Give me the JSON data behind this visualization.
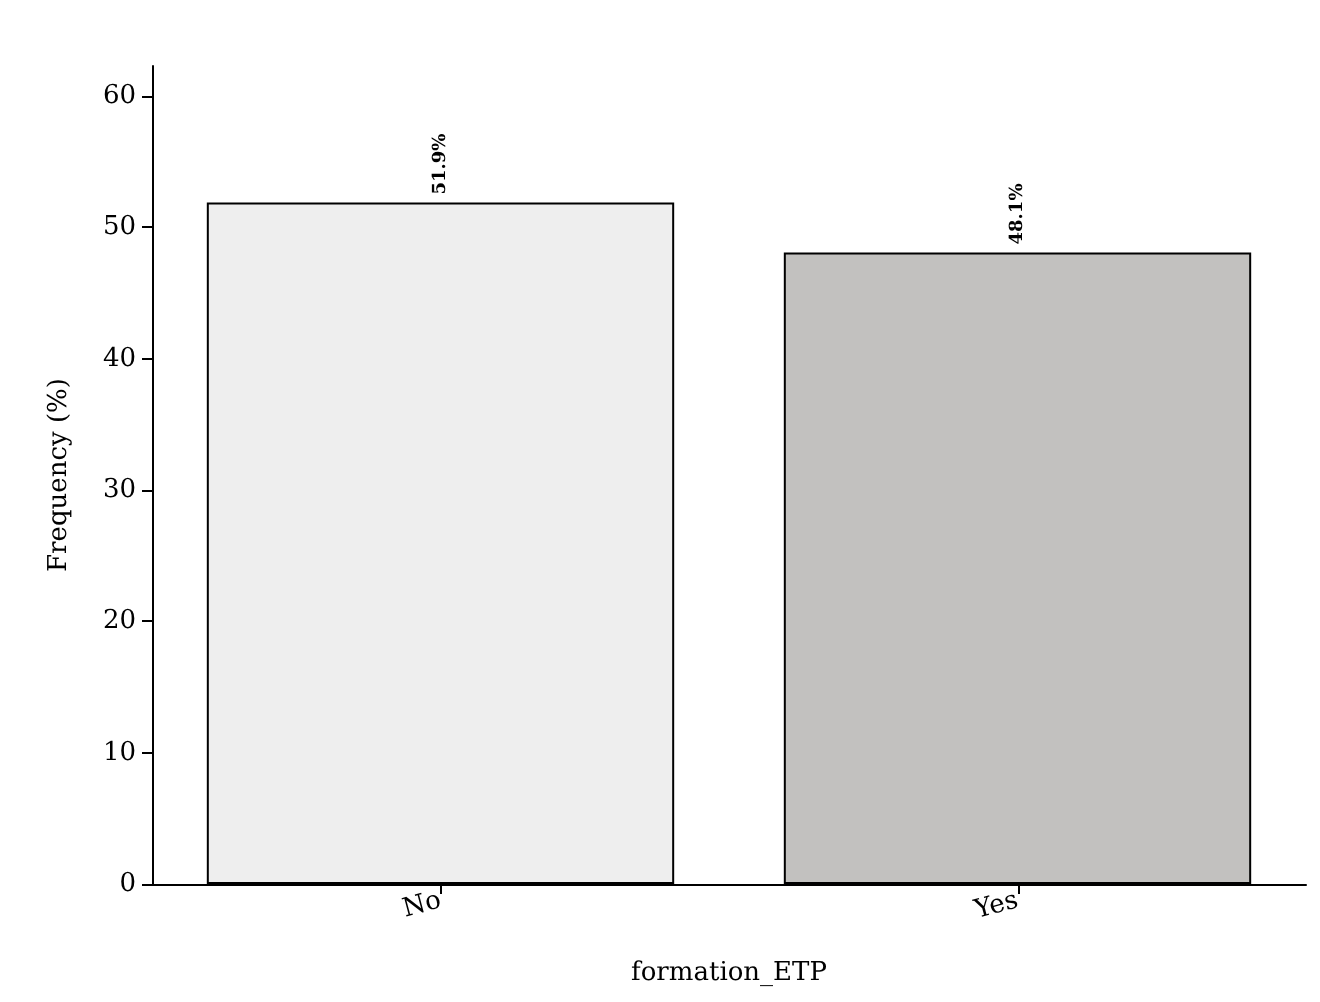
{
  "chart_data": {
    "type": "bar",
    "xlabel": "formation_ETP",
    "ylabel": "Frequency (%)",
    "categories": [
      "No",
      "Yes"
    ],
    "values": [
      51.9,
      48.1
    ],
    "colors": [
      "#eeeeee",
      "#c2c1bf"
    ],
    "value_labels": [
      "51.9%",
      "48.1%"
    ],
    "ylim": [
      0,
      62.3
    ],
    "yticks": [
      0,
      10,
      20,
      30,
      40,
      50,
      60
    ],
    "grid": false
  }
}
